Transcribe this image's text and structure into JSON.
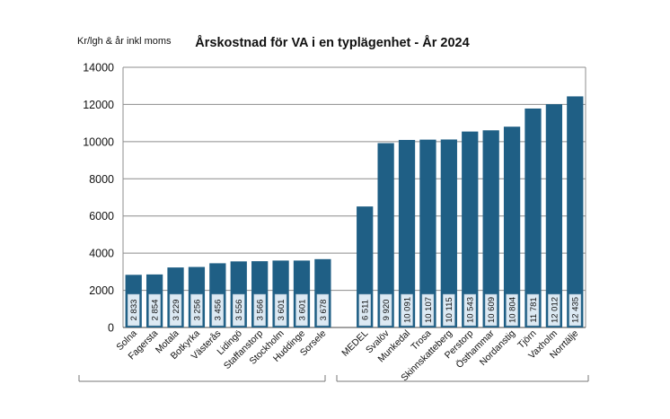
{
  "chart_data": {
    "type": "bar",
    "title": "Årskostnad för VA i en typlägenhet - År 2024",
    "ylabel": "Kr/lgh & år inkl moms",
    "xlabel": "",
    "ylim": [
      0,
      14000
    ],
    "yticks": [
      "0",
      "2000",
      "4000",
      "6000",
      "8000",
      "10000",
      "12000",
      "14000"
    ],
    "ytick_values": [
      0,
      2000,
      4000,
      6000,
      8000,
      10000,
      12000,
      14000
    ],
    "grid": true,
    "bar_color": "#1f5f85",
    "label_box_color": "#dce9f3",
    "categories": [
      "Solna",
      "Fagersta",
      "Motala",
      "Botkyrka",
      "Västerås",
      "Lidingö",
      "Staffanstorp",
      "Stockholm",
      "Huddinge",
      "Sorsele",
      "MEDEL",
      "Svalöv",
      "Munkedal",
      "Trosa",
      "Skinnskatteberg",
      "Perstorp",
      "Östhammar",
      "Nordanstig",
      "Tjörn",
      "Vaxholm",
      "Norrtälje"
    ],
    "values": [
      2833,
      2854,
      3229,
      3256,
      3456,
      3556,
      3566,
      3601,
      3601,
      3678,
      6511,
      9920,
      10091,
      10107,
      10115,
      10543,
      10609,
      10804,
      11781,
      12012,
      12435
    ],
    "value_labels": [
      "2 833",
      "2 854",
      "3 229",
      "3 256",
      "3 456",
      "3 556",
      "3 566",
      "3 601",
      "3 601",
      "3 678",
      "6 511",
      "9 920",
      "10 091",
      "10 107",
      "10 115",
      "10 543",
      "10 609",
      "10 804",
      "11 781",
      "12 012",
      "12 435"
    ]
  }
}
